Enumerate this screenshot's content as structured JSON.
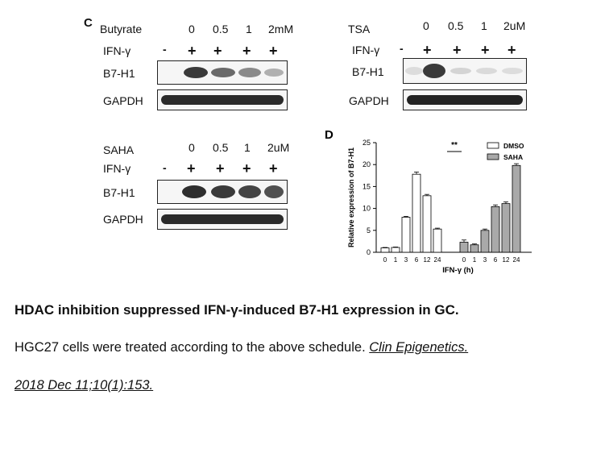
{
  "panel_c": {
    "letter": "C",
    "butyrate_label": "Butyrate",
    "butyrate_doses": [
      "0",
      "0.5",
      "1",
      "2mM"
    ],
    "ifn_label": "IFN-γ",
    "ifn_signs": [
      "-",
      "+",
      "+",
      "+",
      "+"
    ],
    "target_label": "B7-H1",
    "loading_label": "GAPDH"
  },
  "panel_tsa": {
    "label": "TSA",
    "doses": [
      "0",
      "0.5",
      "1",
      "2uM"
    ],
    "ifn_label": "IFN-γ",
    "ifn_signs": [
      "-",
      "+",
      "+",
      "+",
      "+"
    ],
    "target_label": "B7-H1",
    "loading_label": "GAPDH"
  },
  "panel_saha": {
    "label": "SAHA",
    "doses": [
      "0",
      "0.5",
      "1",
      "2uM"
    ],
    "ifn_label": "IFN-γ",
    "ifn_signs": [
      "-",
      "+",
      "+",
      "+",
      "+"
    ],
    "target_label": "B7-H1",
    "loading_label": "GAPDH"
  },
  "chart_data": {
    "type": "bar",
    "panel_letter": "D",
    "ylabel": "Relative expression of B7-H1",
    "xlabel": "IFN-γ (h)",
    "ylim": [
      0,
      25
    ],
    "yticks": [
      0,
      5,
      10,
      15,
      20,
      25
    ],
    "significance": "**",
    "groups": [
      {
        "name": "DMSO",
        "color": "#ffffff",
        "categories": [
          "0",
          "1",
          "3",
          "6",
          "12",
          "24"
        ],
        "values": [
          1.0,
          1.1,
          8.0,
          17.8,
          12.9,
          5.3
        ],
        "errors": [
          0.1,
          0.1,
          0.2,
          0.5,
          0.3,
          0.2
        ]
      },
      {
        "name": "SAHA",
        "color": "#a9a9a9",
        "categories": [
          "0",
          "1",
          "3",
          "6",
          "12",
          "24"
        ],
        "values": [
          2.3,
          1.7,
          5.0,
          10.4,
          11.1,
          19.8
        ],
        "errors": [
          0.5,
          0.2,
          0.3,
          0.4,
          0.4,
          0.4
        ]
      }
    ]
  },
  "caption": {
    "title": "HDAC inhibition suppressed IFN-γ-induced B7-H1 expression in GC.",
    "text": "HGC27 cells were treated according to the above schedule.",
    "citation_part1": "Clin Epigenetics.",
    "citation_part2": "2018 Dec 11;10(1):153."
  }
}
